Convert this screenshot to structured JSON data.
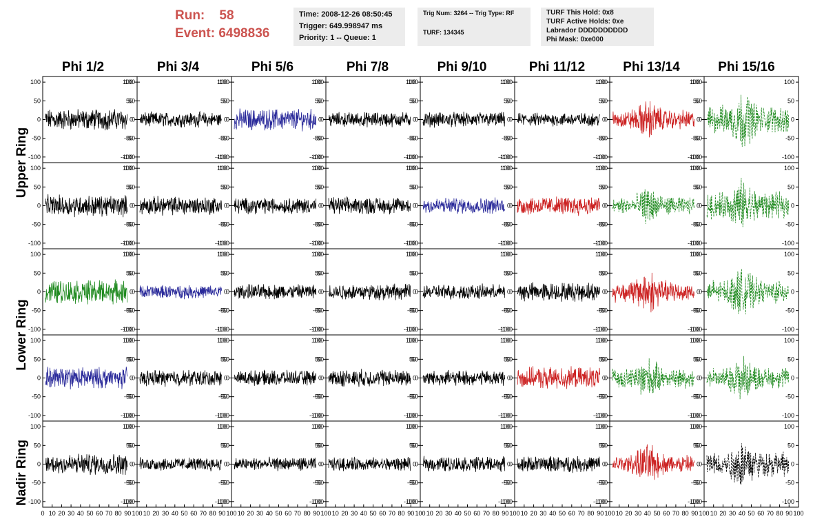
{
  "run_label": "Run:",
  "run_value": "58",
  "event_label": "Event:",
  "event_value": "6498836",
  "info1": [
    "Time: 2008-12-26 08:50:45",
    "Trigger: 649.998947 ms",
    "Priority: 1 -- Queue: 1"
  ],
  "info2": [
    "Trig Num: 3264 -- Trig Type: RF",
    "TURF: 134345"
  ],
  "info3": [
    "TURF This Hold: 0x8",
    "TURF Active Holds: 0xe",
    "Labrador DDDDDDDDDD",
    "Phi Mask: 0xe000"
  ],
  "phi_labels": [
    "Phi 1/2",
    "Phi 3/4",
    "Phi 5/6",
    "Phi 7/8",
    "Phi 9/10",
    "Phi 11/12",
    "Phi 13/14",
    "Phi 15/16"
  ],
  "ring_labels": [
    "Upper Ring",
    "Lower Ring",
    "Nadir Ring"
  ],
  "y_ticks": [
    "100",
    "50",
    "0",
    "-50",
    "-100"
  ],
  "x_ticks": [
    "0",
    "10",
    "20",
    "30",
    "40",
    "50",
    "60",
    "70",
    "80",
    "90",
    "100"
  ],
  "colors": {
    "black": "#000000",
    "blue": "#2a2a9a",
    "green": "#1f8a1f",
    "red": "#cc2222"
  },
  "panel_colors": [
    [
      "black",
      "black",
      "blue",
      "black",
      "black",
      "black",
      "red",
      "green"
    ],
    [
      "black",
      "black",
      "black",
      "black",
      "blue",
      "red",
      "green",
      "green"
    ],
    [
      "green",
      "blue",
      "black",
      "black",
      "black",
      "black",
      "red",
      "green"
    ],
    [
      "blue",
      "black",
      "black",
      "black",
      "black",
      "red",
      "green",
      "green"
    ],
    [
      "black",
      "black",
      "black",
      "black",
      "black",
      "black",
      "red",
      "black"
    ]
  ],
  "panel_amplitudes": [
    [
      40,
      28,
      40,
      28,
      28,
      25,
      55,
      80
    ],
    [
      40,
      35,
      30,
      32,
      30,
      35,
      50,
      75
    ],
    [
      45,
      25,
      28,
      30,
      28,
      35,
      60,
      65
    ],
    [
      40,
      30,
      28,
      32,
      28,
      40,
      55,
      60
    ],
    [
      40,
      25,
      25,
      25,
      28,
      30,
      55,
      70
    ]
  ]
}
